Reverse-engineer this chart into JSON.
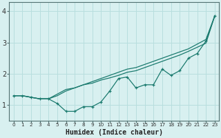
{
  "x": [
    0,
    1,
    2,
    3,
    4,
    5,
    6,
    7,
    8,
    9,
    10,
    11,
    12,
    13,
    14,
    15,
    16,
    17,
    18,
    19,
    20,
    21,
    22,
    23
  ],
  "line1_y": [
    1.3,
    1.3,
    1.25,
    1.2,
    1.2,
    1.05,
    0.8,
    0.8,
    0.95,
    0.95,
    1.1,
    1.45,
    1.85,
    1.9,
    1.55,
    1.65,
    1.65,
    2.15,
    1.95,
    2.1,
    2.5,
    2.65,
    3.05,
    3.85
  ],
  "line2_y": [
    1.3,
    1.3,
    1.25,
    1.2,
    1.2,
    1.3,
    1.45,
    1.55,
    1.65,
    1.75,
    1.85,
    1.95,
    2.05,
    2.15,
    2.2,
    2.3,
    2.4,
    2.5,
    2.6,
    2.7,
    2.8,
    2.95,
    3.1,
    3.85
  ],
  "line3_y": [
    1.3,
    1.3,
    1.25,
    1.2,
    1.2,
    1.35,
    1.5,
    1.55,
    1.65,
    1.7,
    1.8,
    1.87,
    1.95,
    2.05,
    2.1,
    2.2,
    2.3,
    2.4,
    2.5,
    2.6,
    2.72,
    2.85,
    2.98,
    3.85
  ],
  "color": "#1a7a6e",
  "bg_color": "#d8f0f0",
  "grid_color": "#b8dede",
  "xlabel": "Humidex (Indice chaleur)",
  "yticks": [
    1,
    2,
    3,
    4
  ],
  "xtick_labels": [
    "0",
    "1",
    "2",
    "3",
    "4",
    "5",
    "6",
    "7",
    "8",
    "9",
    "10",
    "11",
    "12",
    "13",
    "14",
    "15",
    "16",
    "17",
    "18",
    "19",
    "20",
    "21",
    "22",
    "23"
  ],
  "ylim": [
    0.5,
    4.3
  ],
  "xlim": [
    -0.5,
    23.5
  ]
}
